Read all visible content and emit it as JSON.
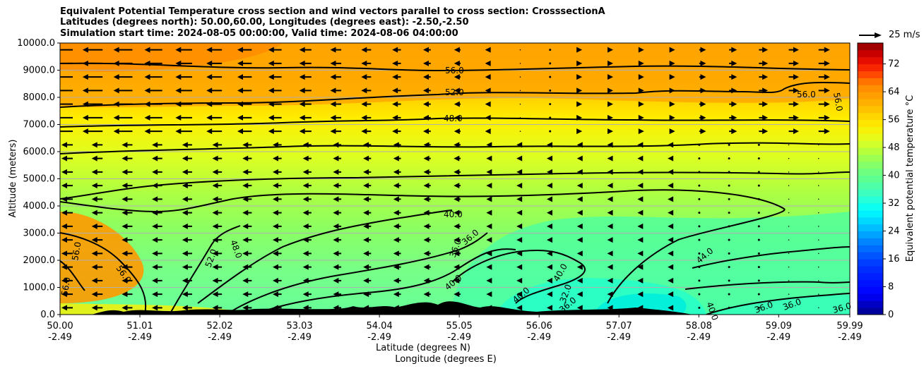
{
  "chart_data": {
    "type": "heatmap",
    "title_lines": [
      "Equivalent Potential Temperature cross section and wind vectors parallel to cross section: CrosssectionA",
      "Latitudes (degrees north): 50.00,60.00, Longitudes (degrees east): -2.50,-2.50",
      "Simulation start time: 2024-08-05 00:00:00, Valid time: 2024-08-06 04:00:00"
    ],
    "xlabel_lat": "Latitude (degrees N)",
    "xlabel_lon": "Longitude (degrees E)",
    "ylabel": "Altitude (meters)",
    "x_ticks": [
      {
        "lat": "50.00",
        "lon": "-2.49"
      },
      {
        "lat": "51.01",
        "lon": "-2.49"
      },
      {
        "lat": "52.02",
        "lon": "-2.49"
      },
      {
        "lat": "53.03",
        "lon": "-2.49"
      },
      {
        "lat": "54.04",
        "lon": "-2.49"
      },
      {
        "lat": "55.05",
        "lon": "-2.49"
      },
      {
        "lat": "56.06",
        "lon": "-2.49"
      },
      {
        "lat": "57.07",
        "lon": "-2.49"
      },
      {
        "lat": "58.08",
        "lon": "-2.49"
      },
      {
        "lat": "59.09",
        "lon": "-2.49"
      },
      {
        "lat": "59.99",
        "lon": "-2.49"
      }
    ],
    "xlim": [
      50.0,
      59.99
    ],
    "y_ticks": [
      "0.0",
      "1000.0",
      "2000.0",
      "3000.0",
      "4000.0",
      "5000.0",
      "6000.0",
      "7000.0",
      "8000.0",
      "9000.0",
      "10000.0"
    ],
    "ylim": [
      0,
      10000
    ],
    "colorbar": {
      "label": "Equivalent potential temperature °C",
      "ticks": [
        "0",
        "8",
        "16",
        "24",
        "32",
        "40",
        "48",
        "56",
        "64",
        "72"
      ],
      "range": [
        0,
        78
      ]
    },
    "reference_vector_label": "25 m/s",
    "contour_labels": [
      "56.0",
      "52.0",
      "48.0",
      "40.0",
      "36.0",
      "44.0",
      "32.0"
    ]
  }
}
